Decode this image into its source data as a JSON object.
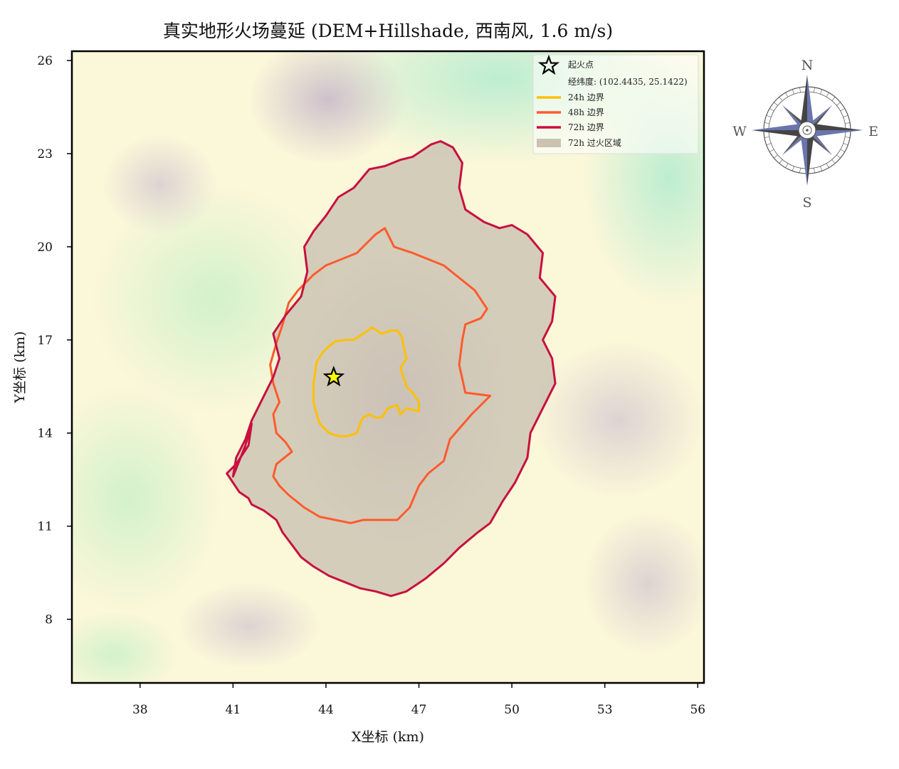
{
  "chart_data": {
    "type": "area",
    "title": "真实地形火场蔓延 (DEM+Hillshade, 西南风, 1.6 m/s)",
    "xlabel": "X坐标 (km)",
    "ylabel": "Y坐标 (km)",
    "xlim": [
      35.8,
      56.2
    ],
    "ylim": [
      5.95,
      26.3
    ],
    "xticks": [
      38,
      41,
      44,
      47,
      50,
      53,
      56
    ],
    "yticks": [
      8,
      11,
      14,
      17,
      20,
      23,
      26
    ],
    "grid": false,
    "legend_position": "top-right",
    "ignition": {
      "label": "起火点",
      "coord_text": "经纬度: (102.4435, 25.1422)",
      "x": 44.25,
      "y": 15.8,
      "color": "#ffff00"
    },
    "series": [
      {
        "name": "24h 边界",
        "color": "#ffc000",
        "x": [
          43.7,
          43.9,
          44.1,
          44.3,
          44.6,
          44.9,
          45.2,
          45.5,
          45.8,
          46.1,
          46.3,
          46.45,
          46.5,
          46.6,
          46.4,
          46.5,
          46.6,
          46.8,
          47.0,
          47.0,
          46.6,
          46.4,
          46.3,
          46.0,
          45.8,
          45.6,
          45.4,
          45.2,
          45.1,
          45.0,
          44.7,
          44.4,
          44.1,
          43.8,
          43.7,
          43.6,
          43.6,
          43.7
        ],
        "y": [
          16.3,
          16.6,
          16.8,
          16.95,
          17.0,
          17.0,
          17.2,
          17.4,
          17.2,
          17.3,
          17.3,
          17.1,
          16.8,
          16.4,
          16.1,
          15.8,
          15.5,
          15.3,
          15.0,
          14.7,
          14.8,
          14.6,
          14.9,
          14.8,
          14.5,
          14.5,
          14.6,
          14.5,
          14.3,
          14.0,
          13.9,
          13.9,
          14.0,
          14.3,
          14.6,
          15.0,
          15.6,
          16.3
        ]
      },
      {
        "name": "48h 边界",
        "color": "#ff5a2e",
        "x": [
          42.6,
          42.8,
          43.1,
          43.4,
          43.6,
          44.0,
          44.5,
          45.0,
          45.3,
          45.6,
          45.9,
          46.2,
          46.5,
          46.8,
          47.3,
          47.8,
          48.3,
          48.8,
          49.2,
          49.0,
          48.5,
          48.4,
          48.3,
          48.5,
          49.3,
          48.7,
          48.0,
          47.8,
          47.3,
          47.0,
          46.7,
          46.3,
          45.8,
          45.2,
          44.8,
          44.3,
          43.8,
          43.3,
          42.8,
          42.5,
          42.3,
          42.4,
          42.9,
          42.7,
          42.4,
          42.3,
          42.5,
          42.3,
          42.2,
          42.4,
          42.6
        ],
        "y": [
          17.5,
          18.2,
          18.6,
          18.9,
          19.1,
          19.4,
          19.6,
          19.8,
          20.1,
          20.4,
          20.6,
          20.0,
          19.9,
          19.8,
          19.6,
          19.4,
          19.0,
          18.6,
          18.0,
          17.7,
          17.5,
          17.0,
          16.2,
          15.3,
          15.2,
          14.6,
          13.8,
          13.1,
          12.7,
          12.3,
          11.6,
          11.2,
          11.2,
          11.2,
          11.1,
          11.2,
          11.3,
          11.6,
          12.0,
          12.3,
          12.6,
          13.0,
          13.4,
          13.7,
          14.0,
          14.6,
          15.0,
          15.6,
          16.2,
          16.9,
          17.5
        ]
      },
      {
        "name": "72h 边界",
        "color": "#c8103e",
        "x": [
          41.0,
          41.1,
          41.4,
          41.6,
          41.9,
          42.3,
          42.5,
          42.3,
          42.7,
          43.2,
          43.4,
          43.3,
          43.6,
          44.0,
          44.4,
          44.9,
          45.4,
          45.9,
          46.4,
          46.8,
          47.1,
          47.4,
          47.7,
          48.1,
          48.4,
          48.3,
          48.5,
          49.1,
          49.6,
          50.0,
          50.5,
          51.0,
          50.9,
          51.4,
          51.3,
          51.0,
          51.3,
          51.4,
          51.0,
          50.6,
          50.5,
          50.1,
          49.7,
          49.3,
          48.9,
          48.3,
          47.8,
          47.2,
          46.6,
          46.1,
          45.6,
          45.1,
          44.6,
          44.1,
          43.6,
          43.2,
          42.9,
          42.6,
          42.4,
          42.0,
          41.6,
          41.5,
          41.2,
          41.0,
          40.8,
          41.1,
          41.5,
          41.6,
          41.4,
          41.0
        ],
        "y": [
          12.6,
          13.2,
          13.8,
          14.4,
          15.0,
          15.8,
          16.4,
          17.2,
          17.8,
          18.4,
          19.2,
          20.0,
          20.5,
          21.0,
          21.6,
          21.9,
          22.5,
          22.6,
          22.8,
          22.9,
          23.1,
          23.3,
          23.4,
          23.2,
          22.7,
          21.9,
          21.2,
          20.8,
          20.6,
          20.7,
          20.4,
          19.8,
          19.0,
          18.4,
          17.6,
          17.0,
          16.4,
          15.6,
          14.8,
          14.0,
          13.2,
          12.4,
          11.8,
          11.1,
          10.8,
          10.3,
          9.8,
          9.3,
          8.9,
          8.75,
          8.9,
          9.0,
          9.2,
          9.4,
          9.7,
          10.0,
          10.4,
          10.8,
          11.2,
          11.5,
          11.7,
          11.9,
          12.1,
          12.4,
          12.7,
          13.0,
          13.6,
          14.3,
          13.6,
          12.6
        ]
      }
    ],
    "burned_area": {
      "name": "72h 过火区域",
      "color": "#cbc2b1"
    }
  },
  "compass": {
    "north": "N",
    "south": "S",
    "east": "E",
    "west": "W"
  },
  "colors": {
    "terrain_low": "#b9eccb",
    "terrain_mid": "#fbf8da",
    "terrain_high": "#c9b8c8",
    "axes_frame": "#000000"
  }
}
